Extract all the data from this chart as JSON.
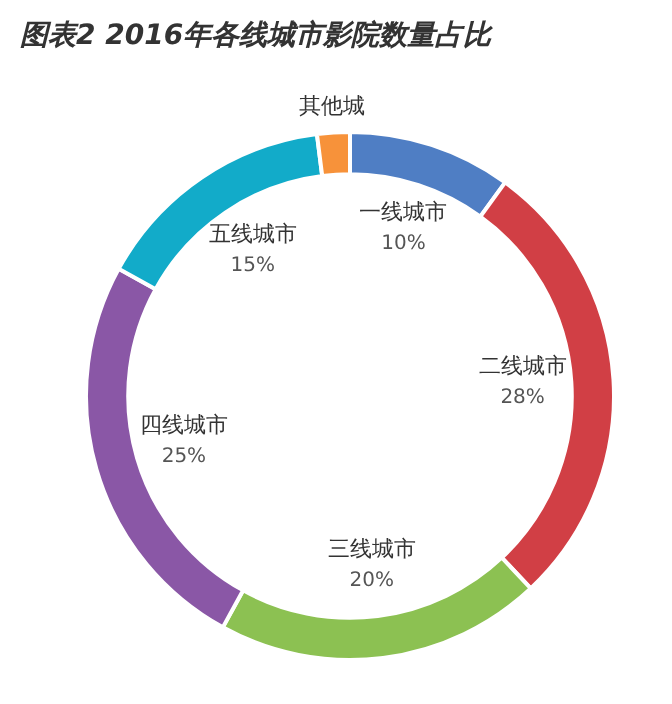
{
  "chart_data": {
    "type": "donut",
    "title": "图表2 2016年各线城市影院数量占比",
    "categories": [
      "一线城市",
      "二线城市",
      "三线城市",
      "四线城市",
      "五线城市",
      "其他城"
    ],
    "values": [
      10,
      28,
      20,
      25,
      15,
      2
    ],
    "value_labels": [
      "10%",
      "28%",
      "20%",
      "25%",
      "15%",
      null
    ],
    "colors": [
      "#4f7ec4",
      "#d13f45",
      "#8cc152",
      "#8a57a6",
      "#12abc9",
      "#f7923a"
    ]
  }
}
